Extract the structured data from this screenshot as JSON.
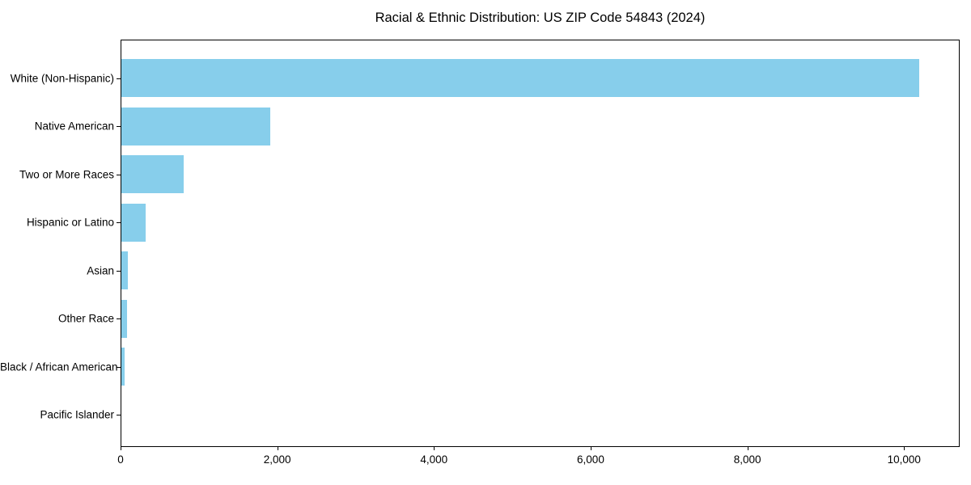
{
  "chart_data": {
    "type": "bar",
    "orientation": "horizontal",
    "title": "Racial & Ethnic Distribution: US ZIP Code 54843 (2024)",
    "categories": [
      "White (Non-Hispanic)",
      "Native American",
      "Two or More Races",
      "Hispanic or Latino",
      "Asian",
      "Other Race",
      "Black / African American",
      "Pacific Islander"
    ],
    "values": [
      10200,
      1900,
      800,
      310,
      80,
      70,
      38,
      0
    ],
    "xlabel": "",
    "ylabel": "",
    "xlim": [
      0,
      10710
    ],
    "xticks": [
      0,
      2000,
      4000,
      6000,
      8000,
      10000
    ],
    "xtick_labels": [
      "0",
      "2,000",
      "4,000",
      "6,000",
      "8,000",
      "10,000"
    ],
    "bar_color": "#87CEEB",
    "axis_color": "#000000",
    "text_color": "#000000",
    "background": "#FFFFFF",
    "grid": false,
    "legend": false
  }
}
